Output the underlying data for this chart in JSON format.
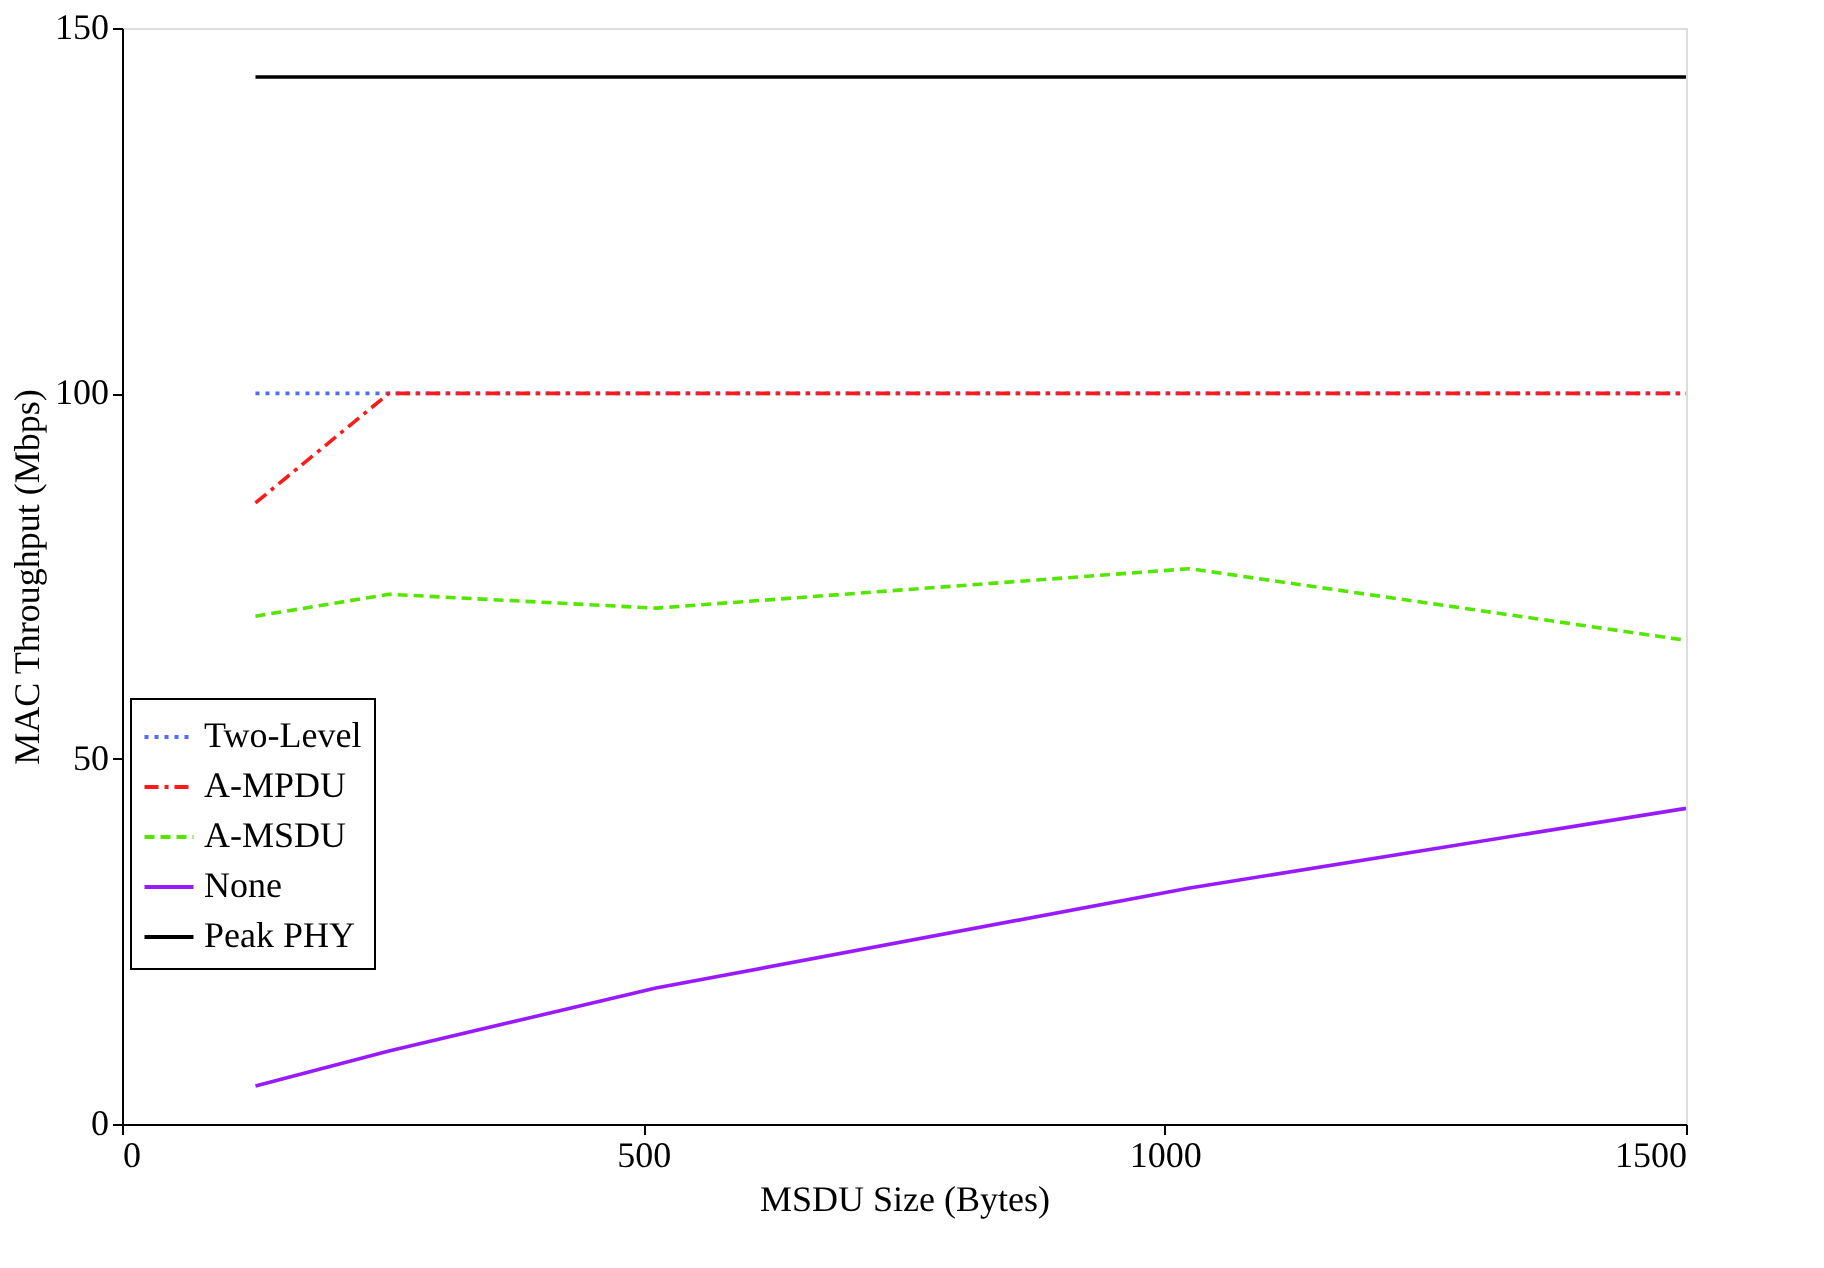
{
  "chart_data": {
    "type": "line",
    "xlabel": "MSDU Size (Bytes)",
    "ylabel": "MAC Throughput (Mbps)",
    "xlim": [
      0,
      1500
    ],
    "xticks": [
      0,
      500,
      {
        "value": 1000,
        "label": "1000"
      },
      {
        "value": 1500,
        "label": "1500"
      }
    ],
    "ylim": [
      0,
      150
    ],
    "yticks": [
      0,
      50,
      100,
      150
    ],
    "grid": false,
    "legend": "bottom left",
    "marker": "none",
    "x": [
      128,
      256,
      512,
      1024,
      1500
    ],
    "series": [
      {
        "name": "Two-Level",
        "color": "#4f6cff",
        "line_style": "dotted",
        "values": [
          100,
          100,
          100,
          100,
          100
        ]
      },
      {
        "name": "A-MPDU",
        "color": "#ff1a1a",
        "line_style": "dashdot",
        "values": [
          85,
          100,
          100,
          100,
          100
        ]
      },
      {
        "name": "A-MSDU",
        "color": "#55e600",
        "line_style": "dashed",
        "values": [
          69.5,
          72.5,
          70.6,
          76,
          66.2
        ]
      },
      {
        "name": "None",
        "color": "#9a1aff",
        "line_style": "solid",
        "values": [
          5.2,
          10,
          18.6,
          32.3,
          43.2
        ]
      },
      {
        "name": "Peak PHY",
        "color": "#000000",
        "line_style": "solid",
        "values": [
          143.3,
          143.3,
          143.3,
          143.3,
          143.3
        ]
      }
    ]
  }
}
